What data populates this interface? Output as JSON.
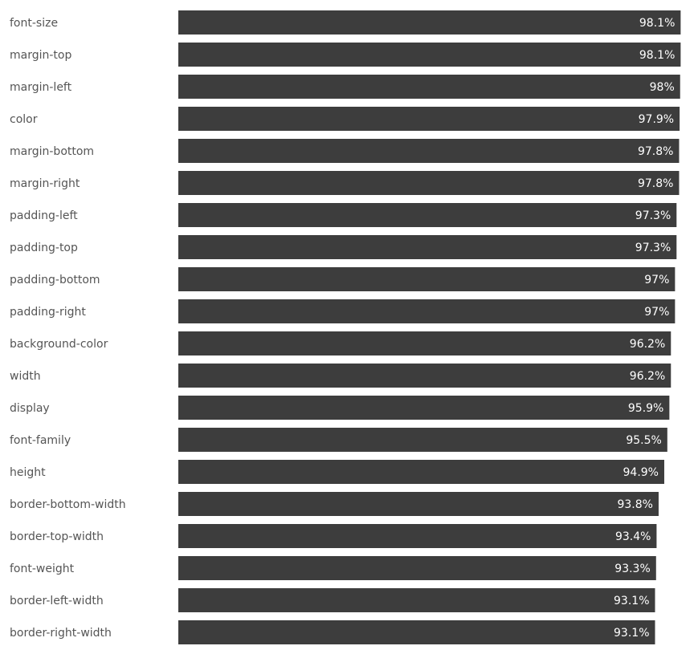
{
  "chart_data": {
    "type": "bar",
    "orientation": "horizontal",
    "title": "",
    "xlabel": "",
    "ylabel": "",
    "categories": [
      "font-size",
      "margin-top",
      "margin-left",
      "color",
      "margin-bottom",
      "margin-right",
      "padding-left",
      "padding-top",
      "padding-bottom",
      "padding-right",
      "background-color",
      "width",
      "display",
      "font-family",
      "height",
      "border-bottom-width",
      "border-top-width",
      "font-weight",
      "border-left-width",
      "border-right-width"
    ],
    "values": [
      98.1,
      98.1,
      98,
      97.9,
      97.8,
      97.8,
      97.3,
      97.3,
      97,
      97,
      96.2,
      96.2,
      95.9,
      95.5,
      94.9,
      93.8,
      93.4,
      93.3,
      93.1,
      93.1
    ],
    "value_labels": [
      "98.1%",
      "98.1%",
      "98%",
      "97.9%",
      "97.8%",
      "97.8%",
      "97.3%",
      "97.3%",
      "97%",
      "97%",
      "96.2%",
      "96.2%",
      "95.9%",
      "95.5%",
      "94.9%",
      "93.8%",
      "93.4%",
      "93.3%",
      "93.1%",
      "93.1%"
    ],
    "xlim": [
      0,
      100
    ],
    "grid": false,
    "legend": "none",
    "bar_color": "#3d3d3d",
    "label_color": "#555555",
    "value_label_color": "#ffffff"
  }
}
